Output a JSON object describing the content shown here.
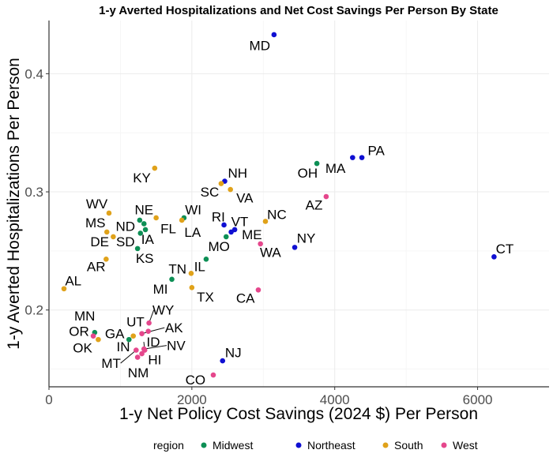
{
  "chart_data": {
    "type": "scatter",
    "title": "1-y Averted Hospitalizations and Net Cost Savings Per Person By State",
    "xlabel": "1-y Net Policy Cost Savings (2024 $) Per Person",
    "ylabel": "1-y Averted Hospitalizations Per Person",
    "xlim": [
      0,
      7000
    ],
    "ylim": [
      0.135,
      0.445
    ],
    "x_ticks": [
      0,
      2000,
      4000,
      6000
    ],
    "x_tick_labels": [
      "0",
      "2000",
      "4000",
      "6000"
    ],
    "y_ticks": [
      0.2,
      0.3,
      0.4
    ],
    "y_tick_labels": [
      "0.2",
      "0.3",
      "0.4"
    ],
    "legend_title": "region",
    "legend_position": "bottom",
    "regions": [
      {
        "name": "Midwest",
        "color": "#0d8f55"
      },
      {
        "name": "Northeast",
        "color": "#0f0fd2"
      },
      {
        "name": "South",
        "color": "#e0a21a"
      },
      {
        "name": "West",
        "color": "#e5478c"
      }
    ],
    "points": [
      {
        "state": "MD",
        "region": "Northeast",
        "x": 3150,
        "y": 0.433,
        "lx": 2950,
        "ly": 0.424
      },
      {
        "state": "PA",
        "region": "Northeast",
        "x": 4380,
        "y": 0.329,
        "lx": 4580,
        "ly": 0.335
      },
      {
        "state": "MA",
        "region": "Northeast",
        "x": 4250,
        "y": 0.329,
        "lx": 4010,
        "ly": 0.32
      },
      {
        "state": "OH",
        "region": "Midwest",
        "x": 3750,
        "y": 0.324,
        "lx": 3620,
        "ly": 0.316
      },
      {
        "state": "CT",
        "region": "Northeast",
        "x": 6230,
        "y": 0.245,
        "lx": 6380,
        "ly": 0.252
      },
      {
        "state": "KY",
        "region": "South",
        "x": 1480,
        "y": 0.32,
        "lx": 1300,
        "ly": 0.312
      },
      {
        "state": "NH",
        "region": "Northeast",
        "x": 2460,
        "y": 0.309,
        "lx": 2640,
        "ly": 0.316
      },
      {
        "state": "SC",
        "region": "South",
        "x": 2410,
        "y": 0.307,
        "lx": 2250,
        "ly": 0.3
      },
      {
        "state": "VA",
        "region": "South",
        "x": 2540,
        "y": 0.302,
        "lx": 2740,
        "ly": 0.295
      },
      {
        "state": "AZ",
        "region": "West",
        "x": 3880,
        "y": 0.296,
        "lx": 3710,
        "ly": 0.289
      },
      {
        "state": "WV",
        "region": "South",
        "x": 840,
        "y": 0.282,
        "lx": 670,
        "ly": 0.29
      },
      {
        "state": "WI",
        "region": "Midwest",
        "x": 1890,
        "y": 0.278,
        "lx": 2020,
        "ly": 0.285
      },
      {
        "state": "NE",
        "region": "Midwest",
        "x": 1270,
        "y": 0.276,
        "lx": 1330,
        "ly": 0.285
      },
      {
        "state": "NC",
        "region": "South",
        "x": 3030,
        "y": 0.275,
        "lx": 3190,
        "ly": 0.281
      },
      {
        "state": "RI",
        "region": "Northeast",
        "x": 2450,
        "y": 0.272,
        "lx": 2370,
        "ly": 0.279
      },
      {
        "state": "VT",
        "region": "Northeast",
        "x": 2600,
        "y": 0.268,
        "lx": 2670,
        "ly": 0.275
      },
      {
        "state": "MS",
        "region": "South",
        "x": 810,
        "y": 0.266,
        "lx": 650,
        "ly": 0.274
      },
      {
        "state": "ND",
        "region": "Midwest",
        "x": 1330,
        "y": 0.273,
        "lx": 1070,
        "ly": 0.271
      },
      {
        "state": "FL",
        "region": "South",
        "x": 1500,
        "y": 0.278,
        "lx": 1670,
        "ly": 0.269
      },
      {
        "state": "ME",
        "region": "Northeast",
        "x": 2550,
        "y": 0.266,
        "lx": 2840,
        "ly": 0.264
      },
      {
        "state": "LA",
        "region": "South",
        "x": 1860,
        "y": 0.276,
        "lx": 2010,
        "ly": 0.266
      },
      {
        "state": "NY",
        "region": "Northeast",
        "x": 3440,
        "y": 0.253,
        "lx": 3600,
        "ly": 0.261
      },
      {
        "state": "DE",
        "region": "South",
        "x": 900,
        "y": 0.262,
        "lx": 710,
        "ly": 0.258
      },
      {
        "state": "SD",
        "region": "Midwest",
        "x": 1280,
        "y": 0.265,
        "lx": 1070,
        "ly": 0.258
      },
      {
        "state": "IA",
        "region": "Midwest",
        "x": 1350,
        "y": 0.268,
        "lx": 1380,
        "ly": 0.26
      },
      {
        "state": "MO",
        "region": "Midwest",
        "x": 2480,
        "y": 0.262,
        "lx": 2380,
        "ly": 0.254
      },
      {
        "state": "WA",
        "region": "West",
        "x": 2960,
        "y": 0.256,
        "lx": 3100,
        "ly": 0.249
      },
      {
        "state": "KS",
        "region": "Midwest",
        "x": 1240,
        "y": 0.252,
        "lx": 1340,
        "ly": 0.244
      },
      {
        "state": "AR",
        "region": "South",
        "x": 800,
        "y": 0.243,
        "lx": 660,
        "ly": 0.237
      },
      {
        "state": "TN",
        "region": "Midwest",
        "x": 2200,
        "y": 0.243,
        "lx": 1800,
        "ly": 0.235
      },
      {
        "state": "IL",
        "region": "South",
        "x": 1990,
        "y": 0.231,
        "lx": 2110,
        "ly": 0.237
      },
      {
        "state": "AL",
        "region": "South",
        "x": 210,
        "y": 0.218,
        "lx": 340,
        "ly": 0.225
      },
      {
        "state": "MI",
        "region": "Midwest",
        "x": 1720,
        "y": 0.226,
        "lx": 1560,
        "ly": 0.218
      },
      {
        "state": "TX",
        "region": "South",
        "x": 2000,
        "y": 0.219,
        "lx": 2190,
        "ly": 0.211
      },
      {
        "state": "CA",
        "region": "West",
        "x": 2930,
        "y": 0.217,
        "lx": 2750,
        "ly": 0.21
      },
      {
        "state": "MN",
        "region": "Midwest",
        "x": 640,
        "y": 0.181,
        "lx": 500,
        "ly": 0.195
      },
      {
        "state": "UT",
        "region": "West",
        "x": 1390,
        "y": 0.182,
        "lx": 1210,
        "ly": 0.19
      },
      {
        "state": "WY",
        "region": "West",
        "x": 1400,
        "y": 0.189,
        "lx": 1600,
        "ly": 0.2
      },
      {
        "state": "AK",
        "region": "West",
        "x": 1300,
        "y": 0.18,
        "lx": 1750,
        "ly": 0.185
      },
      {
        "state": "OR",
        "region": "West",
        "x": 620,
        "y": 0.178,
        "lx": 420,
        "ly": 0.182
      },
      {
        "state": "GA",
        "region": "South",
        "x": 1180,
        "y": 0.178,
        "lx": 920,
        "ly": 0.18
      },
      {
        "state": "OK",
        "region": "South",
        "x": 690,
        "y": 0.175,
        "lx": 470,
        "ly": 0.168
      },
      {
        "state": "ID",
        "region": "West",
        "x": 1340,
        "y": 0.166,
        "lx": 1460,
        "ly": 0.173
      },
      {
        "state": "NV",
        "region": "West",
        "x": 1330,
        "y": 0.167,
        "lx": 1780,
        "ly": 0.17
      },
      {
        "state": "IN",
        "region": "Midwest",
        "x": 1120,
        "y": 0.175,
        "lx": 1040,
        "ly": 0.169
      },
      {
        "state": "NJ",
        "region": "Northeast",
        "x": 2430,
        "y": 0.157,
        "lx": 2580,
        "ly": 0.164
      },
      {
        "state": "MT",
        "region": "West",
        "x": 1220,
        "y": 0.166,
        "lx": 870,
        "ly": 0.155
      },
      {
        "state": "HI",
        "region": "West",
        "x": 1300,
        "y": 0.163,
        "lx": 1480,
        "ly": 0.158
      },
      {
        "state": "NM",
        "region": "West",
        "x": 1240,
        "y": 0.16,
        "lx": 1250,
        "ly": 0.147
      },
      {
        "state": "CO",
        "region": "West",
        "x": 2300,
        "y": 0.145,
        "lx": 2050,
        "ly": 0.141
      }
    ],
    "connectors": [
      "WY",
      "AK",
      "ID",
      "NV",
      "MT"
    ]
  }
}
